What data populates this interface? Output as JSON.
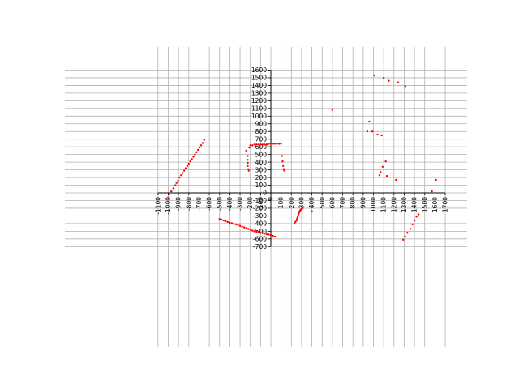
{
  "chart_data": {
    "type": "scatter",
    "title": "",
    "xlabel": "",
    "ylabel": "",
    "xlim": [
      -1100,
      1700
    ],
    "ylim": [
      -700,
      1600
    ],
    "grid": true,
    "x_ticks": [
      -1100,
      -1000,
      -900,
      -800,
      -700,
      -600,
      -500,
      -400,
      -300,
      -200,
      -100,
      0,
      100,
      200,
      300,
      400,
      500,
      600,
      700,
      800,
      900,
      1000,
      1100,
      1200,
      1300,
      1400,
      1500,
      1600,
      1700
    ],
    "y_ticks": [
      -700,
      -600,
      -500,
      -400,
      -300,
      -200,
      -100,
      0,
      100,
      200,
      300,
      400,
      500,
      600,
      700,
      800,
      900,
      1000,
      1100,
      1200,
      1300,
      1400,
      1500,
      1600
    ],
    "colors": {
      "points": "#ff0000",
      "grid": "#b0b0b0",
      "axis": "#000000"
    },
    "series": [
      {
        "points": [
          [
            -1000,
            -60
          ],
          [
            -990,
            -20
          ],
          [
            -970,
            20
          ],
          [
            -950,
            60
          ],
          [
            -930,
            100
          ],
          [
            -920,
            130
          ],
          [
            -905,
            160
          ],
          [
            -890,
            200
          ],
          [
            -875,
            230
          ],
          [
            -860,
            260
          ],
          [
            -845,
            290
          ],
          [
            -830,
            320
          ],
          [
            -815,
            350
          ],
          [
            -800,
            380
          ],
          [
            -785,
            410
          ],
          [
            -770,
            440
          ],
          [
            -755,
            470
          ],
          [
            -740,
            500
          ],
          [
            -725,
            530
          ],
          [
            -710,
            560
          ],
          [
            -695,
            590
          ],
          [
            -680,
            620
          ],
          [
            -665,
            650
          ],
          [
            -650,
            690
          ],
          [
            -500,
            -340
          ],
          [
            -480,
            -350
          ],
          [
            -460,
            -360
          ],
          [
            -440,
            -370
          ],
          [
            -420,
            -380
          ],
          [
            -400,
            -390
          ],
          [
            -380,
            -395
          ],
          [
            -360,
            -405
          ],
          [
            -340,
            -410
          ],
          [
            -320,
            -420
          ],
          [
            -300,
            -430
          ],
          [
            -280,
            -440
          ],
          [
            -260,
            -450
          ],
          [
            -240,
            -460
          ],
          [
            -220,
            -470
          ],
          [
            -200,
            -480
          ],
          [
            -180,
            -490
          ],
          [
            -160,
            -500
          ],
          [
            -140,
            -505
          ],
          [
            -120,
            -515
          ],
          [
            -100,
            -520
          ],
          [
            -80,
            -525
          ],
          [
            -60,
            -530
          ],
          [
            -40,
            -540
          ],
          [
            -20,
            -545
          ],
          [
            0,
            -550
          ],
          [
            20,
            -560
          ],
          [
            40,
            -570
          ],
          [
            -240,
            550
          ],
          [
            -225,
            480
          ],
          [
            -225,
            430
          ],
          [
            -225,
            390
          ],
          [
            -225,
            350
          ],
          [
            -220,
            310
          ],
          [
            -215,
            290
          ],
          [
            -210,
            590
          ],
          [
            -200,
            620
          ],
          [
            -180,
            620
          ],
          [
            -160,
            630
          ],
          [
            -140,
            630
          ],
          [
            -120,
            630
          ],
          [
            -100,
            630
          ],
          [
            -80,
            630
          ],
          [
            -60,
            630
          ],
          [
            -40,
            630
          ],
          [
            -20,
            640
          ],
          [
            0,
            640
          ],
          [
            20,
            640
          ],
          [
            40,
            640
          ],
          [
            60,
            640
          ],
          [
            80,
            640
          ],
          [
            100,
            640
          ],
          [
            110,
            480
          ],
          [
            115,
            410
          ],
          [
            120,
            350
          ],
          [
            125,
            310
          ],
          [
            130,
            290
          ],
          [
            230,
            -400
          ],
          [
            240,
            -380
          ],
          [
            250,
            -360
          ],
          [
            255,
            -340
          ],
          [
            260,
            -320
          ],
          [
            265,
            -300
          ],
          [
            270,
            -280
          ],
          [
            275,
            -260
          ],
          [
            280,
            -240
          ],
          [
            285,
            -230
          ],
          [
            290,
            -220
          ],
          [
            300,
            -210
          ],
          [
            310,
            -200
          ],
          [
            400,
            -240
          ],
          [
            600,
            1080
          ],
          [
            940,
            800
          ],
          [
            960,
            930
          ],
          [
            990,
            800
          ],
          [
            1010,
            1530
          ],
          [
            1040,
            760
          ],
          [
            1060,
            230
          ],
          [
            1070,
            270
          ],
          [
            1080,
            750
          ],
          [
            1090,
            340
          ],
          [
            1100,
            1500
          ],
          [
            1120,
            410
          ],
          [
            1130,
            220
          ],
          [
            1150,
            1460
          ],
          [
            1220,
            170
          ],
          [
            1240,
            1440
          ],
          [
            1310,
            1390
          ],
          [
            1290,
            -610
          ],
          [
            1310,
            -570
          ],
          [
            1330,
            -520
          ],
          [
            1360,
            -470
          ],
          [
            1380,
            -410
          ],
          [
            1400,
            -360
          ],
          [
            1420,
            -310
          ],
          [
            1440,
            -280
          ],
          [
            1570,
            20
          ],
          [
            1610,
            170
          ]
        ]
      }
    ]
  }
}
